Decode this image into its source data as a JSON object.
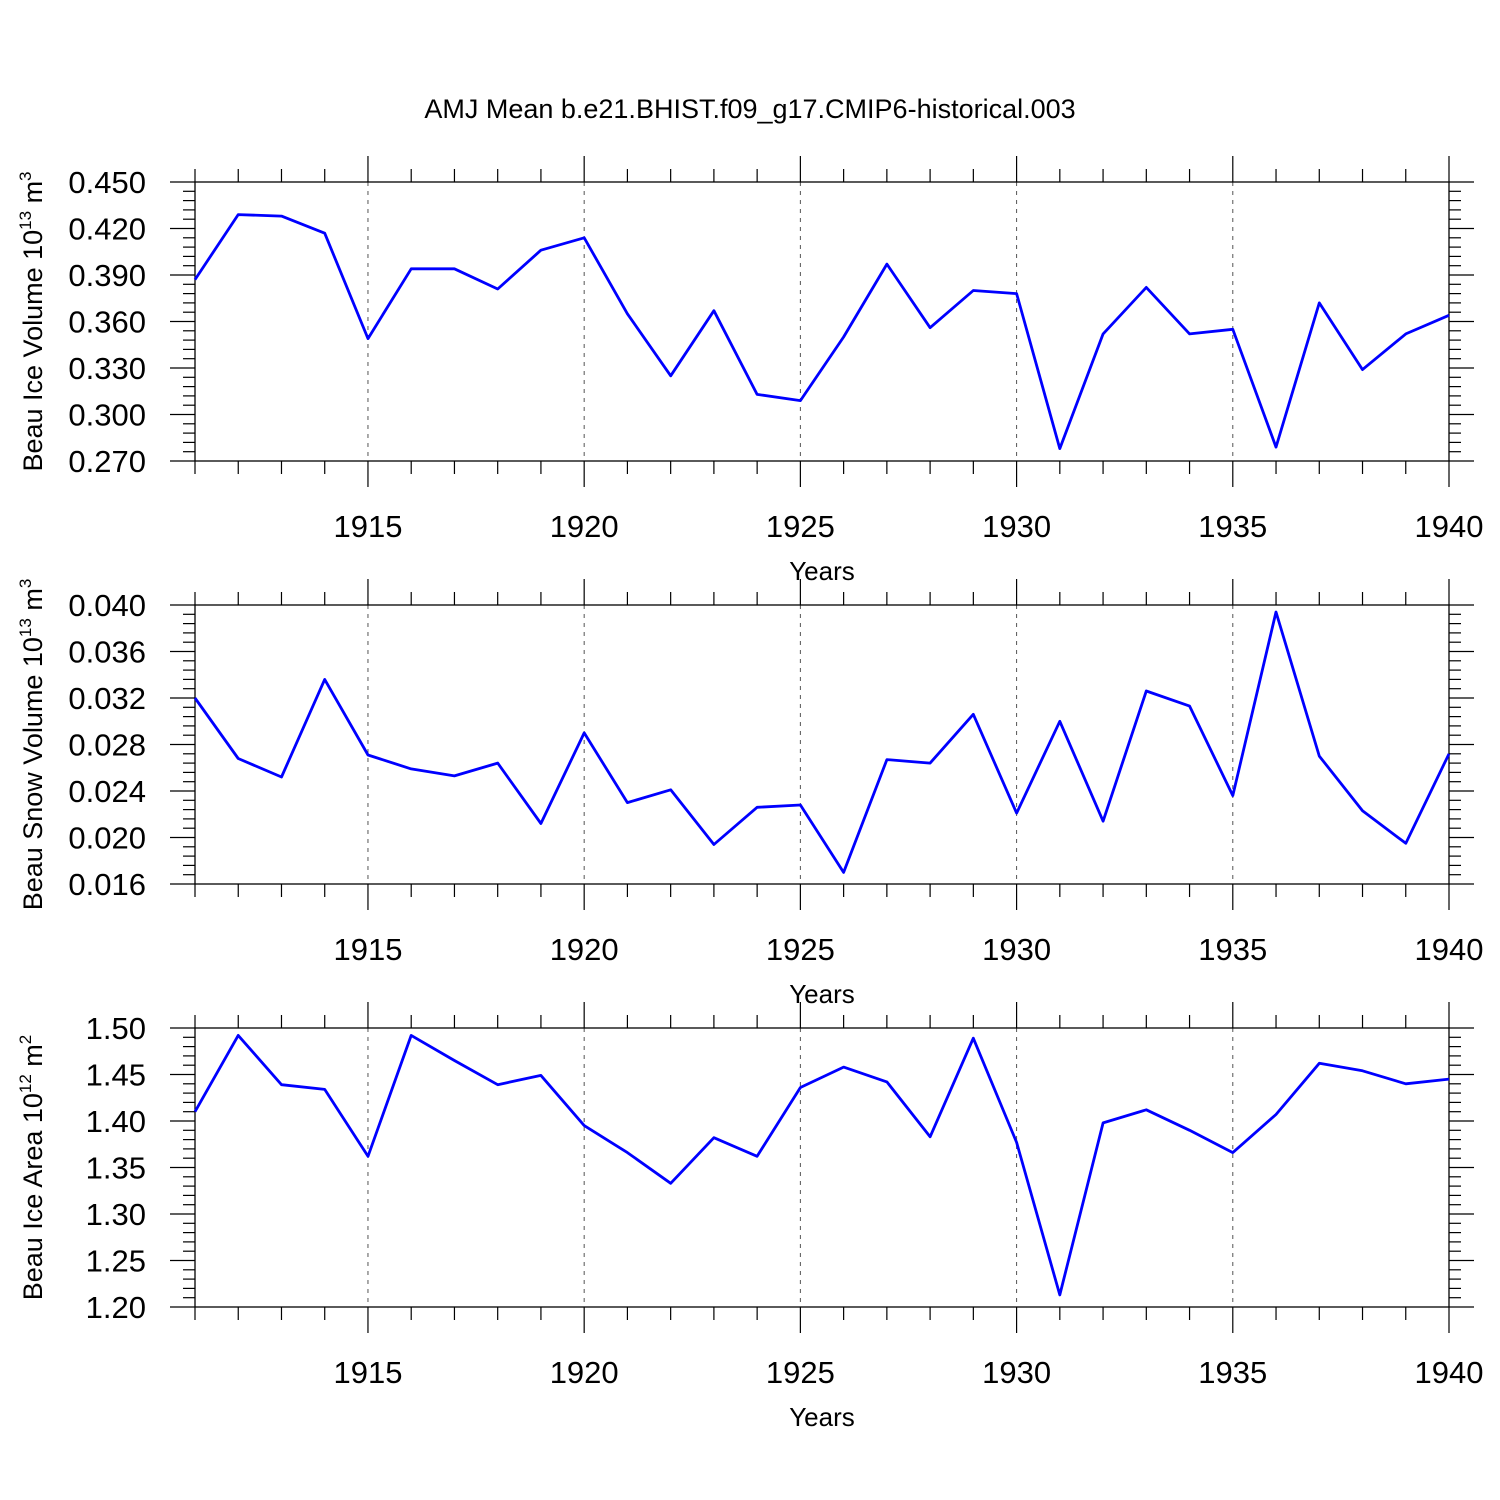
{
  "chart_data": {
    "type": "line",
    "title": "AMJ Mean b.e21.BHIST.f09_g17.CMIP6-historical.003",
    "line_color": "#0000ff",
    "x": [
      1911,
      1912,
      1913,
      1914,
      1915,
      1916,
      1917,
      1918,
      1919,
      1920,
      1921,
      1922,
      1923,
      1924,
      1925,
      1926,
      1927,
      1928,
      1929,
      1930,
      1931,
      1932,
      1933,
      1934,
      1935,
      1936,
      1937,
      1938,
      1939,
      1940
    ],
    "xlim": [
      1911,
      1940
    ],
    "xticks": [
      1915,
      1920,
      1925,
      1930,
      1935,
      1940
    ],
    "grid": "dashed vertical lines at labelled x ticks",
    "panels": [
      {
        "ylabel": "Beau Ice Volume 10",
        "ylabel_exp": "13",
        "ylabel_unit": " m",
        "ylabel_unit_exp": "3",
        "xlabel": "Years",
        "ylim": [
          0.27,
          0.45
        ],
        "yticks": [
          "0.450",
          "0.420",
          "0.390",
          "0.360",
          "0.330",
          "0.300",
          "0.270"
        ],
        "values": [
          0.387,
          0.429,
          0.428,
          0.417,
          0.349,
          0.394,
          0.394,
          0.381,
          0.406,
          0.414,
          0.365,
          0.325,
          0.367,
          0.313,
          0.309,
          0.35,
          0.397,
          0.356,
          0.38,
          0.378,
          0.278,
          0.352,
          0.382,
          0.352,
          0.355,
          0.279,
          0.372,
          0.329,
          0.352,
          0.364
        ]
      },
      {
        "ylabel": "Beau Snow Volume 10",
        "ylabel_exp": "13",
        "ylabel_unit": " m",
        "ylabel_unit_exp": "3",
        "xlabel": "Years",
        "ylim": [
          0.016,
          0.04
        ],
        "yticks": [
          "0.040",
          "0.036",
          "0.032",
          "0.028",
          "0.024",
          "0.020",
          "0.016"
        ],
        "values": [
          0.032,
          0.0268,
          0.0252,
          0.0336,
          0.0271,
          0.0259,
          0.0253,
          0.0264,
          0.0212,
          0.029,
          0.023,
          0.0241,
          0.0194,
          0.0226,
          0.0228,
          0.017,
          0.0267,
          0.0264,
          0.0306,
          0.0221,
          0.03,
          0.0214,
          0.0326,
          0.0313,
          0.0236,
          0.0394,
          0.027,
          0.0223,
          0.0195,
          0.0272
        ]
      },
      {
        "ylabel": "Beau Ice Area 10",
        "ylabel_exp": "12",
        "ylabel_unit": " m",
        "ylabel_unit_exp": "2",
        "xlabel": "Years",
        "ylim": [
          1.2,
          1.5
        ],
        "yticks": [
          "1.50",
          "1.45",
          "1.40",
          "1.35",
          "1.30",
          "1.25",
          "1.20"
        ],
        "values": [
          1.41,
          1.492,
          1.439,
          1.434,
          1.362,
          1.492,
          1.465,
          1.439,
          1.449,
          1.395,
          1.366,
          1.333,
          1.382,
          1.362,
          1.436,
          1.458,
          1.442,
          1.383,
          1.489,
          1.377,
          1.213,
          1.398,
          1.412,
          1.39,
          1.366,
          1.407,
          1.462,
          1.454,
          1.44,
          1.445
        ]
      }
    ]
  }
}
